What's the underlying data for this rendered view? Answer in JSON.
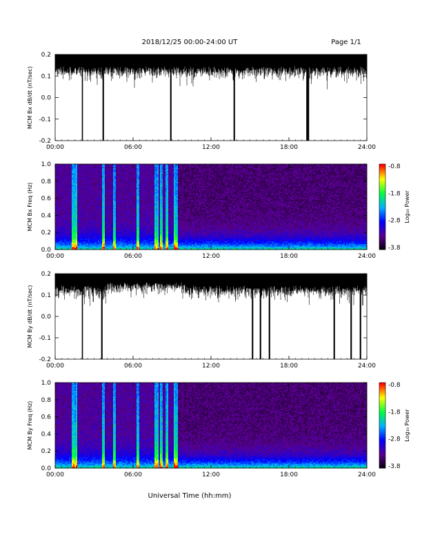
{
  "header": {
    "date_range": "2018/12/25  00:00-24:00 UT",
    "page": "Page 1/1"
  },
  "footer": {
    "xaxis_title": "Universal Time (hh:mm)"
  },
  "chart_data": [
    {
      "type": "line",
      "ylabel": "MCM Bx dB/dt (nT/sec)",
      "xlim": [
        "00:00",
        "24:00"
      ],
      "xticks": [
        "00:00",
        "06:00",
        "12:00",
        "18:00",
        "24:00"
      ],
      "ylim": [
        -0.2,
        0.2
      ],
      "yticks": [
        "0.2",
        "0.1",
        "0.0",
        "-0.1",
        "-0.2"
      ],
      "trace_color": "#000000",
      "notable_spikes_hours": [
        2.1,
        3.7,
        8.9,
        13.8,
        19.4,
        19.5
      ]
    },
    {
      "type": "heatmap",
      "ylabel": "MCM Bx Freq (Hz)",
      "xlim": [
        "00:00",
        "24:00"
      ],
      "xticks": [
        "00:00",
        "06:00",
        "12:00",
        "18:00",
        "24:00"
      ],
      "ylim": [
        0,
        1
      ],
      "yticks": [
        "1.0",
        "0.8",
        "0.6",
        "0.4",
        "0.2",
        "0.0"
      ],
      "colorbar": {
        "label": "Log₁₀ Power",
        "range": [
          -3.8,
          -0.8
        ],
        "ticks": [
          "-0.8",
          "-1.8",
          "-2.8",
          "-3.8"
        ],
        "colormap": [
          "#000000",
          "#5a008f",
          "#0000ff",
          "#00b0ff",
          "#00ff40",
          "#ffff00",
          "#ff0000"
        ]
      },
      "broadband_bursts_hours": [
        1.4,
        1.6,
        3.7,
        4.6,
        6.4,
        7.8,
        8.2,
        8.6,
        9.3
      ]
    },
    {
      "type": "line",
      "ylabel": "MCM By dB/dt (nT/sec)",
      "xlim": [
        "00:00",
        "24:00"
      ],
      "xticks": [
        "00:00",
        "06:00",
        "12:00",
        "18:00",
        "24:00"
      ],
      "ylim": [
        -0.2,
        0.2
      ],
      "yticks": [
        "0.2",
        "0.1",
        "0.0",
        "-0.1",
        "-0.2"
      ],
      "trace_color": "#000000",
      "notable_spikes_hours": [
        2.1,
        3.6,
        15.2,
        15.8,
        16.5,
        21.5,
        22.8,
        23.5
      ]
    },
    {
      "type": "heatmap",
      "ylabel": "MCM By Freq (Hz)",
      "xlim": [
        "00:00",
        "24:00"
      ],
      "xticks": [
        "00:00",
        "06:00",
        "12:00",
        "18:00",
        "24:00"
      ],
      "ylim": [
        0,
        1
      ],
      "yticks": [
        "1.0",
        "0.8",
        "0.6",
        "0.4",
        "0.2",
        "0.0"
      ],
      "colorbar": {
        "label": "Log₁₀ Power",
        "range": [
          -3.8,
          -0.8
        ],
        "ticks": [
          "-0.8",
          "-1.8",
          "-2.8",
          "-3.8"
        ],
        "colormap": [
          "#000000",
          "#5a008f",
          "#0000ff",
          "#00b0ff",
          "#00ff40",
          "#ffff00",
          "#ff0000"
        ]
      },
      "broadband_bursts_hours": [
        1.4,
        1.6,
        3.7,
        4.6,
        6.4,
        7.8,
        8.2,
        8.6,
        9.3
      ]
    }
  ]
}
